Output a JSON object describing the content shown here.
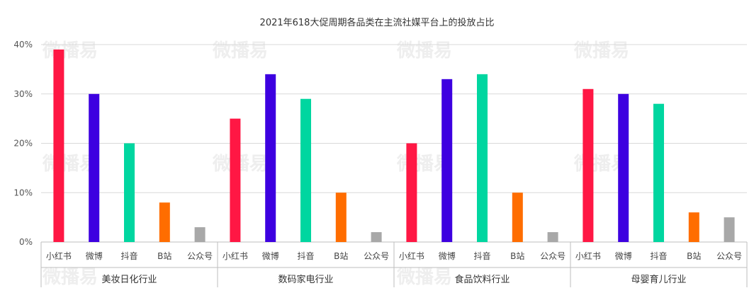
{
  "chart_data": {
    "type": "bar",
    "title": "2021年618大促周期各品类在主流社媒平台上的投放占比",
    "ylim": [
      0,
      40
    ],
    "yticks": [
      "0%",
      "10%",
      "20%",
      "30%",
      "40%"
    ],
    "ytick_values": [
      0,
      10,
      20,
      30,
      40
    ],
    "grid": true,
    "groups": [
      {
        "label": "美妆日化行业",
        "categories": [
          "小红书",
          "微博",
          "抖音",
          "B站",
          "公众号"
        ],
        "values": [
          39,
          30,
          20,
          8,
          3
        ]
      },
      {
        "label": "数码家电行业",
        "categories": [
          "小红书",
          "微博",
          "抖音",
          "B站",
          "公众号"
        ],
        "values": [
          25,
          34,
          29,
          10,
          2
        ]
      },
      {
        "label": "食品饮料行业",
        "categories": [
          "小红书",
          "微博",
          "抖音",
          "B站",
          "公众号"
        ],
        "values": [
          20,
          33,
          34,
          10,
          2
        ]
      },
      {
        "label": "母婴育儿行业",
        "categories": [
          "小红书",
          "微博",
          "抖音",
          "B站",
          "公众号"
        ],
        "values": [
          31,
          30,
          28,
          6,
          5
        ]
      }
    ],
    "platform_colors": [
      "#ff1744",
      "#3d00e0",
      "#00d6a0",
      "#ff6d00",
      "#a8a8a8"
    ]
  },
  "watermark": "微播易"
}
